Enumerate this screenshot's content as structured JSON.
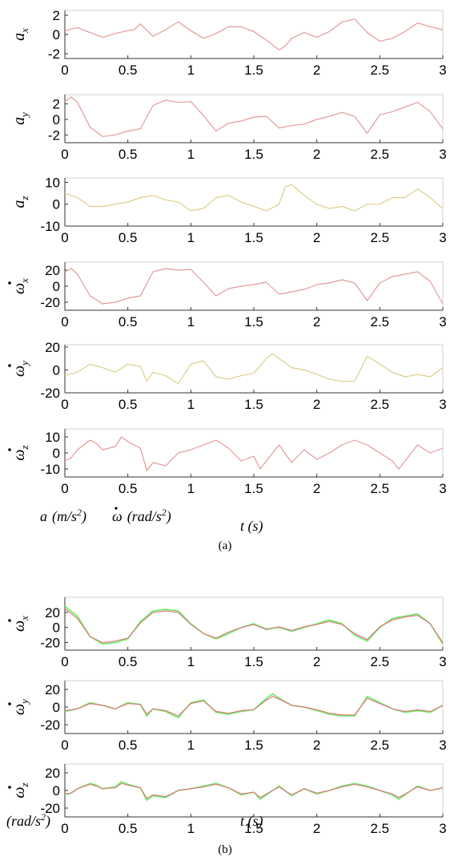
{
  "figure": {
    "caption_a": "(a)",
    "caption_b": "(b)",
    "note_a_accel_var": "a",
    "note_a_accel_unit": "(m/s",
    "note_a_accel_exp": "2",
    "note_a_accel_close": ")",
    "note_a_gyro_var": "ω",
    "note_a_gyro_unit": "(rad/s",
    "note_a_gyro_exp": "2",
    "note_a_gyro_close": ")",
    "note_b_unit": "(rad/s",
    "note_b_exp": "2",
    "note_b_close": ")",
    "xlabel_a": "t (s)",
    "xlabel_b": "t (s)"
  },
  "chart_data": [
    {
      "type": "line",
      "panel": "a1",
      "ylabel": "a",
      "ylabel_sub": "x",
      "ylabel_dot": false,
      "xlim": [
        0,
        3
      ],
      "ylim": [
        -2.5,
        2.5
      ],
      "yticks": [
        -2,
        0,
        2
      ],
      "xticks": [
        0,
        0.5,
        1,
        1.5,
        2,
        2.5,
        3
      ],
      "xtick_labels": [
        "0",
        "0.5",
        "1",
        "1.5",
        "2",
        "2.5",
        "3"
      ],
      "x": [
        0,
        0.1,
        0.2,
        0.3,
        0.4,
        0.5,
        0.55,
        0.6,
        0.7,
        0.8,
        0.9,
        1.0,
        1.1,
        1.2,
        1.3,
        1.4,
        1.5,
        1.6,
        1.7,
        1.75,
        1.8,
        1.9,
        2.0,
        2.1,
        2.2,
        2.3,
        2.4,
        2.5,
        2.6,
        2.7,
        2.8,
        2.9,
        3.0
      ],
      "series": [
        {
          "color": "#e49a9a",
          "values": [
            0.4,
            0.7,
            0.2,
            -0.3,
            0.1,
            0.4,
            0.5,
            1.1,
            -0.2,
            0.5,
            1.3,
            0.4,
            -0.4,
            0.1,
            0.8,
            0.8,
            0.3,
            -0.6,
            -1.6,
            -1.2,
            -0.4,
            0.2,
            -0.3,
            0.3,
            1.3,
            1.6,
            0.2,
            -0.7,
            -0.4,
            0.3,
            1.2,
            0.8,
            0.5
          ]
        }
      ]
    },
    {
      "type": "line",
      "panel": "a2",
      "ylabel": "a",
      "ylabel_sub": "y",
      "ylabel_dot": false,
      "xlim": [
        0,
        3
      ],
      "ylim": [
        -3,
        3.2
      ],
      "yticks": [
        -2,
        0,
        2
      ],
      "xticks": [
        0,
        0.5,
        1,
        1.5,
        2,
        2.5,
        3
      ],
      "xtick_labels": [
        "0",
        "0.5",
        "1",
        "1.5",
        "2",
        "2.5",
        "3"
      ],
      "x": [
        0,
        0.05,
        0.1,
        0.2,
        0.3,
        0.4,
        0.5,
        0.6,
        0.7,
        0.8,
        0.9,
        1.0,
        1.1,
        1.2,
        1.3,
        1.4,
        1.5,
        1.6,
        1.7,
        1.8,
        1.9,
        2.0,
        2.1,
        2.2,
        2.3,
        2.4,
        2.5,
        2.6,
        2.7,
        2.8,
        2.9,
        3.0
      ],
      "series": [
        {
          "color": "#e49a9a",
          "values": [
            2.3,
            2.9,
            2.2,
            -1.0,
            -2.2,
            -2.0,
            -1.5,
            -1.2,
            1.8,
            2.5,
            2.2,
            2.3,
            0.5,
            -1.5,
            -0.5,
            -0.2,
            0.3,
            0.4,
            -1.1,
            -0.8,
            -0.6,
            0.0,
            0.4,
            0.9,
            0.4,
            -1.8,
            0.6,
            1.0,
            1.6,
            2.2,
            1.0,
            -1.2
          ]
        }
      ]
    },
    {
      "type": "line",
      "panel": "a3",
      "ylabel": "a",
      "ylabel_sub": "z",
      "ylabel_dot": false,
      "xlim": [
        0,
        3
      ],
      "ylim": [
        -10,
        12
      ],
      "yticks": [
        -10,
        0,
        10
      ],
      "xticks": [
        0,
        0.5,
        1,
        1.5,
        2,
        2.5,
        3
      ],
      "xtick_labels": [
        "0",
        "0.5",
        "1",
        "1.5",
        "2",
        "2.5",
        "3"
      ],
      "x": [
        0,
        0.1,
        0.2,
        0.3,
        0.4,
        0.5,
        0.6,
        0.7,
        0.8,
        0.9,
        1.0,
        1.1,
        1.2,
        1.3,
        1.4,
        1.5,
        1.6,
        1.7,
        1.75,
        1.8,
        1.9,
        2.0,
        2.1,
        2.2,
        2.3,
        2.4,
        2.5,
        2.6,
        2.7,
        2.8,
        2.9,
        3.0
      ],
      "series": [
        {
          "color": "#dccf8a",
          "values": [
            5,
            3,
            -1,
            -1,
            0,
            1,
            3,
            4,
            2,
            1,
            -3,
            -2,
            3,
            4,
            1,
            -1,
            -3,
            0,
            8,
            9,
            4,
            0,
            -2,
            -1,
            -3,
            0,
            0,
            3,
            3,
            7,
            3,
            -2
          ]
        }
      ]
    },
    {
      "type": "line",
      "panel": "a4",
      "ylabel": "ω",
      "ylabel_sub": "x",
      "ylabel_dot": true,
      "xlim": [
        0,
        3
      ],
      "ylim": [
        -30,
        30
      ],
      "yticks": [
        -20,
        0,
        20
      ],
      "xticks": [
        0,
        0.5,
        1,
        1.5,
        2,
        2.5,
        3
      ],
      "xtick_labels": [
        "0",
        "0.5",
        "1",
        "1.5",
        "2",
        "2.5",
        "3"
      ],
      "x": [
        0,
        0.05,
        0.1,
        0.2,
        0.3,
        0.4,
        0.5,
        0.6,
        0.7,
        0.8,
        0.9,
        1.0,
        1.1,
        1.2,
        1.3,
        1.4,
        1.5,
        1.6,
        1.7,
        1.8,
        1.9,
        2.0,
        2.1,
        2.2,
        2.3,
        2.4,
        2.5,
        2.6,
        2.7,
        2.8,
        2.9,
        3.0
      ],
      "series": [
        {
          "color": "#e49a9a",
          "values": [
            18,
            22,
            15,
            -12,
            -22,
            -20,
            -15,
            -12,
            18,
            22,
            20,
            21,
            5,
            -12,
            -3,
            0,
            2,
            5,
            -10,
            -7,
            -4,
            2,
            4,
            8,
            4,
            -18,
            4,
            12,
            15,
            18,
            6,
            -22
          ]
        }
      ]
    },
    {
      "type": "line",
      "panel": "a5",
      "ylabel": "ω",
      "ylabel_sub": "y",
      "ylabel_dot": true,
      "xlim": [
        0,
        3
      ],
      "ylim": [
        -20,
        22
      ],
      "yticks": [
        -20,
        0,
        20
      ],
      "xticks": [
        0,
        0.5,
        1,
        1.5,
        2,
        2.5,
        3
      ],
      "xtick_labels": [
        "0",
        "0.5",
        "1",
        "1.5",
        "2",
        "2.5",
        "3"
      ],
      "x": [
        0,
        0.1,
        0.2,
        0.3,
        0.4,
        0.5,
        0.6,
        0.65,
        0.7,
        0.8,
        0.9,
        1.0,
        1.1,
        1.2,
        1.3,
        1.4,
        1.5,
        1.6,
        1.65,
        1.7,
        1.8,
        1.9,
        2.0,
        2.1,
        2.2,
        2.3,
        2.4,
        2.5,
        2.6,
        2.7,
        2.8,
        2.9,
        3.0
      ],
      "series": [
        {
          "color": "#dccf8a",
          "values": [
            -5,
            -2,
            5,
            2,
            -2,
            5,
            3,
            -10,
            -2,
            -5,
            -12,
            5,
            8,
            -6,
            -8,
            -5,
            -3,
            10,
            14,
            10,
            2,
            0,
            -4,
            -8,
            -10,
            -10,
            12,
            5,
            -2,
            -6,
            -4,
            -6,
            2
          ]
        }
      ]
    },
    {
      "type": "line",
      "panel": "a6",
      "ylabel": "ω",
      "ylabel_sub": "z",
      "ylabel_dot": true,
      "xlim": [
        0,
        3
      ],
      "ylim": [
        -15,
        15
      ],
      "yticks": [
        -10,
        0,
        10
      ],
      "xticks": [
        0,
        0.5,
        1,
        1.5,
        2,
        2.5,
        3
      ],
      "xtick_labels": [
        "0",
        "0.5",
        "1",
        "1.5",
        "2",
        "2.5",
        "3"
      ],
      "x": [
        0,
        0.05,
        0.1,
        0.2,
        0.25,
        0.3,
        0.4,
        0.45,
        0.5,
        0.6,
        0.65,
        0.7,
        0.8,
        0.9,
        1.0,
        1.1,
        1.2,
        1.3,
        1.4,
        1.5,
        1.55,
        1.6,
        1.7,
        1.8,
        1.9,
        2.0,
        2.1,
        2.2,
        2.3,
        2.4,
        2.5,
        2.6,
        2.65,
        2.7,
        2.8,
        2.9,
        3.0
      ],
      "series": [
        {
          "color": "#e49a9a",
          "values": [
            -5,
            -3,
            2,
            8,
            6,
            2,
            4,
            10,
            7,
            3,
            -11,
            -6,
            -8,
            0,
            2,
            5,
            8,
            3,
            -5,
            -2,
            -10,
            -5,
            5,
            -6,
            2,
            -4,
            0,
            5,
            8,
            5,
            0,
            -5,
            -10,
            -5,
            5,
            0,
            3
          ]
        }
      ]
    },
    {
      "type": "line",
      "panel": "b1",
      "ylabel": "ω",
      "ylabel_sub": "x",
      "ylabel_dot": true,
      "xlim": [
        0,
        3
      ],
      "ylim": [
        -30,
        40
      ],
      "yticks": [
        -20,
        0,
        20
      ],
      "xticks": [
        0,
        0.5,
        1,
        1.5,
        2,
        2.5,
        3
      ],
      "xtick_labels": [
        "0",
        "0.5",
        "1",
        "1.5",
        "2",
        "2.5",
        "3"
      ],
      "x": [
        0,
        0.1,
        0.2,
        0.3,
        0.4,
        0.5,
        0.6,
        0.7,
        0.8,
        0.9,
        1.0,
        1.1,
        1.2,
        1.3,
        1.4,
        1.5,
        1.6,
        1.7,
        1.8,
        1.9,
        2.0,
        2.1,
        2.2,
        2.3,
        2.4,
        2.5,
        2.6,
        2.7,
        2.8,
        2.9,
        3.0
      ],
      "series": [
        {
          "color": "#66ee66",
          "values": [
            28,
            15,
            -12,
            -22,
            -20,
            -15,
            8,
            22,
            24,
            22,
            5,
            -8,
            -15,
            -8,
            0,
            5,
            -2,
            0,
            -5,
            0,
            5,
            10,
            5,
            -10,
            -18,
            0,
            12,
            15,
            18,
            5,
            -22
          ]
        },
        {
          "color": "#e07a7a",
          "values": [
            25,
            12,
            -12,
            -20,
            -18,
            -14,
            6,
            20,
            22,
            20,
            4,
            -8,
            -14,
            -6,
            0,
            4,
            -3,
            1,
            -4,
            1,
            4,
            8,
            4,
            -8,
            -16,
            1,
            10,
            14,
            16,
            5,
            -20
          ]
        }
      ]
    },
    {
      "type": "line",
      "panel": "b2",
      "ylabel": "ω",
      "ylabel_sub": "y",
      "ylabel_dot": true,
      "xlim": [
        0,
        3
      ],
      "ylim": [
        -30,
        30
      ],
      "yticks": [
        -20,
        0,
        20
      ],
      "xticks": [
        0,
        0.5,
        1,
        1.5,
        2,
        2.5,
        3
      ],
      "xtick_labels": [
        "0",
        "0.5",
        "1",
        "1.5",
        "2",
        "2.5",
        "3"
      ],
      "x": [
        0,
        0.1,
        0.2,
        0.3,
        0.4,
        0.5,
        0.6,
        0.65,
        0.7,
        0.8,
        0.9,
        1.0,
        1.1,
        1.2,
        1.3,
        1.4,
        1.5,
        1.6,
        1.65,
        1.7,
        1.8,
        1.9,
        2.0,
        2.1,
        2.2,
        2.3,
        2.4,
        2.5,
        2.6,
        2.7,
        2.8,
        2.9,
        3.0
      ],
      "series": [
        {
          "color": "#66ee66",
          "values": [
            -5,
            -2,
            5,
            2,
            -2,
            5,
            3,
            -10,
            -2,
            -5,
            -12,
            5,
            8,
            -6,
            -8,
            -5,
            -3,
            10,
            15,
            10,
            2,
            0,
            -4,
            -8,
            -10,
            -10,
            12,
            5,
            -2,
            -6,
            -4,
            -6,
            2
          ]
        },
        {
          "color": "#e07a7a",
          "values": [
            -4,
            -2,
            4,
            2,
            -2,
            4,
            3,
            -8,
            -2,
            -4,
            -10,
            4,
            7,
            -5,
            -7,
            -4,
            -3,
            8,
            12,
            9,
            2,
            0,
            -3,
            -7,
            -9,
            -9,
            10,
            4,
            -2,
            -5,
            -3,
            -5,
            2
          ]
        }
      ]
    },
    {
      "type": "line",
      "panel": "b3",
      "ylabel": "ω",
      "ylabel_sub": "z",
      "ylabel_dot": true,
      "xlim": [
        0,
        3
      ],
      "ylim": [
        -30,
        30
      ],
      "yticks": [
        -20,
        0,
        20
      ],
      "xticks": [
        0,
        0.5,
        1,
        1.5,
        2,
        2.5,
        3
      ],
      "xtick_labels": [
        "0",
        "0.5",
        "1",
        "1.5",
        "2",
        "2.5",
        "3"
      ],
      "x": [
        0,
        0.05,
        0.1,
        0.2,
        0.25,
        0.3,
        0.4,
        0.45,
        0.5,
        0.6,
        0.65,
        0.7,
        0.8,
        0.9,
        1.0,
        1.1,
        1.2,
        1.3,
        1.4,
        1.5,
        1.55,
        1.6,
        1.7,
        1.8,
        1.9,
        2.0,
        2.1,
        2.2,
        2.3,
        2.4,
        2.5,
        2.6,
        2.65,
        2.7,
        2.8,
        2.9,
        3.0
      ],
      "series": [
        {
          "color": "#66ee66",
          "values": [
            -5,
            -3,
            2,
            8,
            6,
            2,
            4,
            10,
            7,
            3,
            -11,
            -6,
            -8,
            0,
            2,
            5,
            8,
            3,
            -5,
            -2,
            -10,
            -5,
            5,
            -6,
            2,
            -4,
            0,
            5,
            8,
            5,
            0,
            -5,
            -10,
            -5,
            5,
            0,
            3
          ]
        },
        {
          "color": "#e07a7a",
          "values": [
            -4,
            -3,
            2,
            7,
            5,
            2,
            3,
            8,
            6,
            3,
            -9,
            -5,
            -7,
            0,
            2,
            4,
            7,
            3,
            -4,
            -2,
            -8,
            -4,
            4,
            -5,
            2,
            -3,
            0,
            4,
            7,
            4,
            0,
            -4,
            -8,
            -4,
            4,
            0,
            3
          ]
        }
      ]
    }
  ]
}
